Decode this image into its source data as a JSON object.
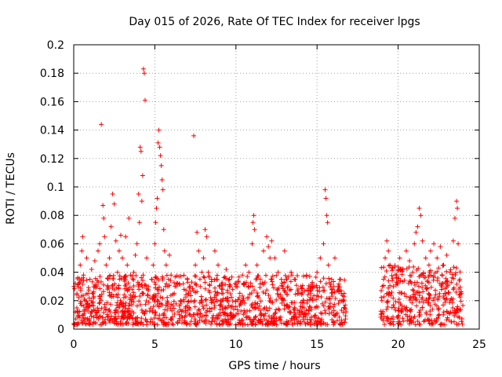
{
  "chart_data": {
    "type": "scatter",
    "title": "Day 015 of 2026, Rate Of TEC Index for receiver lpgs",
    "xlabel": "GPS time / hours",
    "ylabel": "ROTI / TECUs",
    "xlim": [
      0,
      25
    ],
    "ylim": [
      0,
      0.2
    ],
    "x_ticks": [
      0,
      5,
      10,
      15,
      20,
      25
    ],
    "y_ticks": [
      0,
      0.02,
      0.04,
      0.06,
      0.08,
      0.1,
      0.12,
      0.14,
      0.16,
      0.18,
      0.2
    ],
    "x_tick_labels": [
      "0",
      "5",
      "10",
      "15",
      "20",
      "25"
    ],
    "y_tick_labels": [
      "0",
      "0.02",
      "0.04",
      "0.06",
      "0.08",
      "0.1",
      "0.12",
      "0.14",
      "0.16",
      "0.18",
      "0.2"
    ],
    "grid": true,
    "marker": "plus",
    "color": "#ff0000",
    "series": [
      {
        "points": [
          [
            0.1,
            0.012
          ],
          [
            0.2,
            0.025
          ],
          [
            0.3,
            0.032
          ],
          [
            0.4,
            0.045
          ],
          [
            0.5,
            0.055
          ],
          [
            0.55,
            0.065
          ],
          [
            0.6,
            0.038
          ],
          [
            0.7,
            0.02
          ],
          [
            0.8,
            0.05
          ],
          [
            0.9,
            0.015
          ],
          [
            1.0,
            0.035
          ],
          [
            1.1,
            0.042
          ],
          [
            1.2,
            0.025
          ],
          [
            1.3,
            0.048
          ],
          [
            1.4,
            0.03
          ],
          [
            1.5,
            0.055
          ],
          [
            1.6,
            0.06
          ],
          [
            1.7,
            0.144
          ],
          [
            1.8,
            0.087
          ],
          [
            1.85,
            0.078
          ],
          [
            1.9,
            0.065
          ],
          [
            2.0,
            0.045
          ],
          [
            2.1,
            0.03
          ],
          [
            2.2,
            0.05
          ],
          [
            2.3,
            0.072
          ],
          [
            2.4,
            0.095
          ],
          [
            2.5,
            0.088
          ],
          [
            2.6,
            0.062
          ],
          [
            2.7,
            0.04
          ],
          [
            2.8,
            0.055
          ],
          [
            2.9,
            0.066
          ],
          [
            3.0,
            0.05
          ],
          [
            3.1,
            0.035
          ],
          [
            3.2,
            0.065
          ],
          [
            3.3,
            0.045
          ],
          [
            3.4,
            0.078
          ],
          [
            3.5,
            0.038
          ],
          [
            3.6,
            0.028
          ],
          [
            3.7,
            0.04
          ],
          [
            3.8,
            0.052
          ],
          [
            3.9,
            0.06
          ],
          [
            4.0,
            0.095
          ],
          [
            4.05,
            0.075
          ],
          [
            4.1,
            0.128
          ],
          [
            4.15,
            0.125
          ],
          [
            4.2,
            0.09
          ],
          [
            4.25,
            0.108
          ],
          [
            4.3,
            0.183
          ],
          [
            4.35,
            0.18
          ],
          [
            4.4,
            0.161
          ],
          [
            4.5,
            0.05
          ],
          [
            4.6,
            0.03
          ],
          [
            4.7,
            0.022
          ],
          [
            4.8,
            0.035
          ],
          [
            4.9,
            0.045
          ],
          [
            5.0,
            0.06
          ],
          [
            5.05,
            0.075
          ],
          [
            5.1,
            0.085
          ],
          [
            5.15,
            0.092
          ],
          [
            5.2,
            0.131
          ],
          [
            5.25,
            0.14
          ],
          [
            5.3,
            0.128
          ],
          [
            5.35,
            0.122
          ],
          [
            5.4,
            0.115
          ],
          [
            5.45,
            0.105
          ],
          [
            5.5,
            0.098
          ],
          [
            5.55,
            0.07
          ],
          [
            5.6,
            0.055
          ],
          [
            5.7,
            0.045
          ],
          [
            5.8,
            0.03
          ],
          [
            5.9,
            0.052
          ],
          [
            6.0,
            0.038
          ],
          [
            6.2,
            0.025
          ],
          [
            6.4,
            0.032
          ],
          [
            6.6,
            0.02
          ],
          [
            6.8,
            0.028
          ],
          [
            7.0,
            0.035
          ],
          [
            7.2,
            0.03
          ],
          [
            7.4,
            0.136
          ],
          [
            7.5,
            0.045
          ],
          [
            7.6,
            0.068
          ],
          [
            7.7,
            0.055
          ],
          [
            7.8,
            0.03
          ],
          [
            7.9,
            0.04
          ],
          [
            8.0,
            0.05
          ],
          [
            8.1,
            0.07
          ],
          [
            8.2,
            0.065
          ],
          [
            8.3,
            0.04
          ],
          [
            8.5,
            0.035
          ],
          [
            8.7,
            0.055
          ],
          [
            8.9,
            0.045
          ],
          [
            9.0,
            0.03
          ],
          [
            9.2,
            0.025
          ],
          [
            9.4,
            0.042
          ],
          [
            9.6,
            0.035
          ],
          [
            9.8,
            0.028
          ],
          [
            10.0,
            0.03
          ],
          [
            10.2,
            0.022
          ],
          [
            10.4,
            0.038
          ],
          [
            10.6,
            0.045
          ],
          [
            10.8,
            0.04
          ],
          [
            11.0,
            0.06
          ],
          [
            11.05,
            0.075
          ],
          [
            11.1,
            0.08
          ],
          [
            11.15,
            0.07
          ],
          [
            11.3,
            0.045
          ],
          [
            11.5,
            0.035
          ],
          [
            11.7,
            0.055
          ],
          [
            11.9,
            0.065
          ],
          [
            12.0,
            0.058
          ],
          [
            12.1,
            0.05
          ],
          [
            12.2,
            0.062
          ],
          [
            12.4,
            0.05
          ],
          [
            12.6,
            0.04
          ],
          [
            12.8,
            0.035
          ],
          [
            13.0,
            0.055
          ],
          [
            13.2,
            0.03
          ],
          [
            13.4,
            0.04
          ],
          [
            13.6,
            0.035
          ],
          [
            13.8,
            0.025
          ],
          [
            14.0,
            0.03
          ],
          [
            14.2,
            0.015
          ],
          [
            14.4,
            0.02
          ],
          [
            14.6,
            0.025
          ],
          [
            14.8,
            0.03
          ],
          [
            15.0,
            0.04
          ],
          [
            15.2,
            0.05
          ],
          [
            15.4,
            0.06
          ],
          [
            15.5,
            0.098
          ],
          [
            15.55,
            0.092
          ],
          [
            15.6,
            0.08
          ],
          [
            15.65,
            0.075
          ],
          [
            15.7,
            0.045
          ],
          [
            15.9,
            0.035
          ],
          [
            16.1,
            0.05
          ],
          [
            16.3,
            0.03
          ],
          [
            16.5,
            0.025
          ],
          [
            16.6,
            0.02
          ],
          [
            16.7,
            0.015
          ],
          [
            19.0,
            0.02
          ],
          [
            19.1,
            0.035
          ],
          [
            19.2,
            0.05
          ],
          [
            19.3,
            0.062
          ],
          [
            19.4,
            0.055
          ],
          [
            19.5,
            0.045
          ],
          [
            19.7,
            0.03
          ],
          [
            19.9,
            0.038
          ],
          [
            20.1,
            0.05
          ],
          [
            20.3,
            0.042
          ],
          [
            20.5,
            0.055
          ],
          [
            20.7,
            0.048
          ],
          [
            20.9,
            0.04
          ],
          [
            21.0,
            0.06
          ],
          [
            21.1,
            0.068
          ],
          [
            21.2,
            0.072
          ],
          [
            21.3,
            0.085
          ],
          [
            21.4,
            0.08
          ],
          [
            21.5,
            0.062
          ],
          [
            21.7,
            0.05
          ],
          [
            21.9,
            0.045
          ],
          [
            22.0,
            0.055
          ],
          [
            22.2,
            0.06
          ],
          [
            22.4,
            0.05
          ],
          [
            22.6,
            0.058
          ],
          [
            22.8,
            0.045
          ],
          [
            23.0,
            0.052
          ],
          [
            23.2,
            0.04
          ],
          [
            23.4,
            0.062
          ],
          [
            23.5,
            0.078
          ],
          [
            23.6,
            0.09
          ],
          [
            23.65,
            0.085
          ],
          [
            23.7,
            0.06
          ],
          [
            23.8,
            0.035
          ],
          [
            23.9,
            0.025
          ]
        ]
      }
    ],
    "dense_band": [
      {
        "x_range": [
          0,
          16.8
        ],
        "y_range": [
          0.003,
          0.038
        ]
      },
      {
        "x_range": [
          18.9,
          24.0
        ],
        "y_range": [
          0.003,
          0.045
        ]
      }
    ]
  }
}
